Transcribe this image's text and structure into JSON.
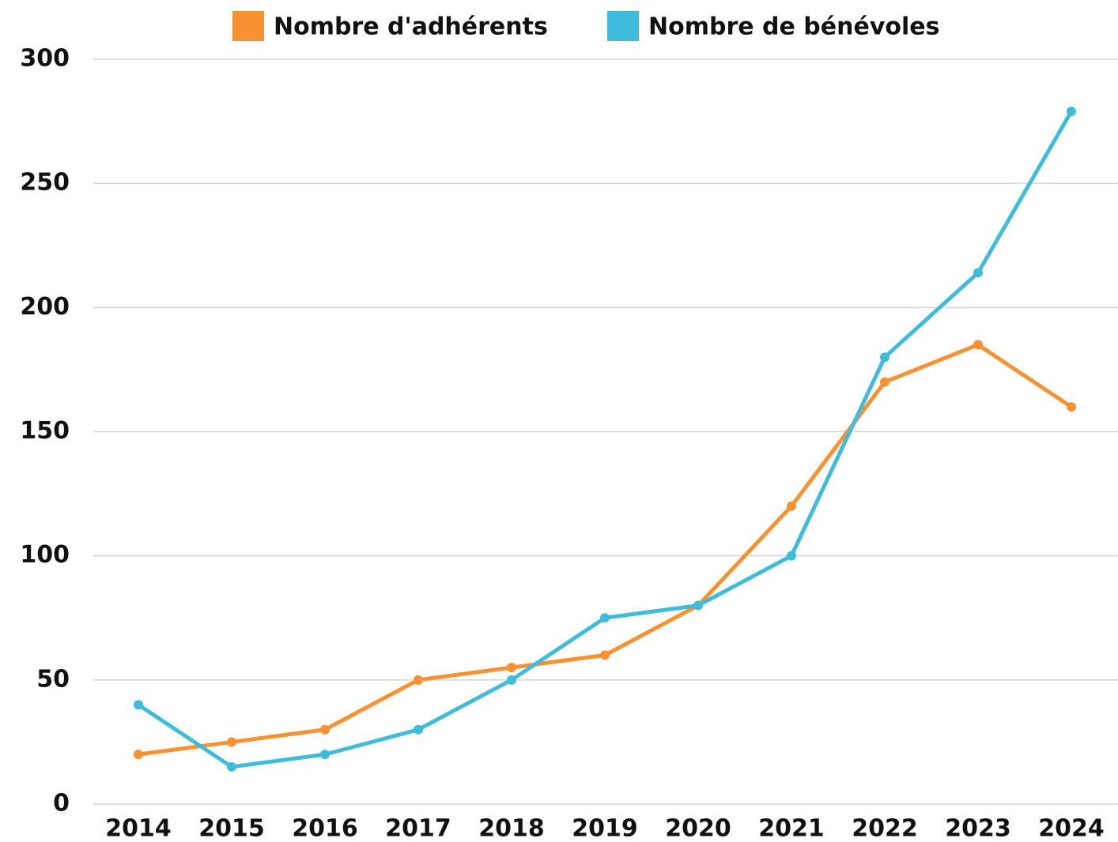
{
  "chart_data": {
    "type": "line",
    "categories": [
      "2014",
      "2015",
      "2016",
      "2017",
      "2018",
      "2019",
      "2020",
      "2021",
      "2022",
      "2023",
      "2024"
    ],
    "series": [
      {
        "name": "Nombre d'adhérents",
        "color": "#f79131",
        "values": [
          20,
          25,
          30,
          50,
          55,
          60,
          80,
          120,
          170,
          185,
          160
        ]
      },
      {
        "name": "Nombre de bénévoles",
        "color": "#3fbcdc",
        "values": [
          40,
          15,
          20,
          30,
          50,
          75,
          80,
          100,
          180,
          214,
          279
        ]
      }
    ],
    "ylim": [
      0,
      300
    ],
    "yticks": [
      0,
      50,
      100,
      150,
      200,
      250,
      300
    ],
    "grid": true,
    "legend": "top"
  }
}
